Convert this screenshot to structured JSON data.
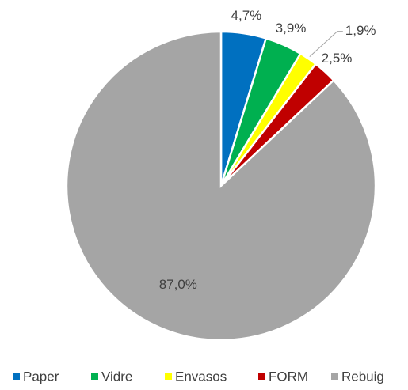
{
  "chart_data": {
    "type": "pie",
    "categories": [
      "Paper",
      "Vidre",
      "Envasos",
      "FORM",
      "Rebuig"
    ],
    "values": [
      4.7,
      3.9,
      1.9,
      2.5,
      87.0
    ],
    "value_labels": [
      "4,7%",
      "3,9%",
      "1,9%",
      "2,5%",
      "87,0%"
    ],
    "colors": [
      "#0070c0",
      "#00b050",
      "#ffff00",
      "#c00000",
      "#a5a5a5"
    ],
    "legend": "bottom"
  }
}
